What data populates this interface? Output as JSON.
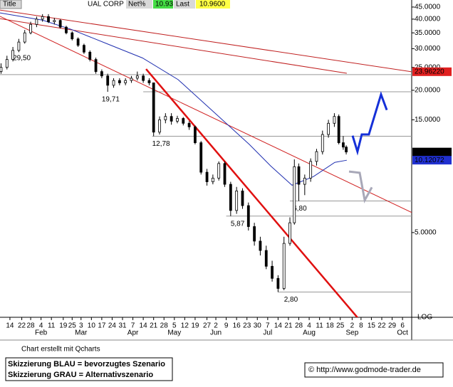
{
  "chart_data": {
    "type": "candlestick",
    "title": "Title",
    "symbol": "UAL CORP",
    "net_label": "Net%",
    "net_value": "10.93",
    "last_label": "Last",
    "last_value": "10.9600",
    "log_label": "LOG",
    "log_scale": true,
    "footer": "Chart erstellt mit Qcharts",
    "legend_lines": [
      "Skizzierung BLAU = bevorzugtes Szenario",
      "Skizzierung GRAU = Alternativszenario"
    ],
    "copyright": "© http://www.godmode-trader.de",
    "xlim": [
      7.3,
      285.2
    ],
    "ylim": [
      2.19,
      48.2
    ],
    "yticks": [
      {
        "value": 45,
        "label": "45.0000"
      },
      {
        "value": 40,
        "label": "40.0000"
      },
      {
        "value": 35,
        "label": "35.0000"
      },
      {
        "value": 30,
        "label": "30.0000"
      },
      {
        "value": 25,
        "label": "25.0000"
      },
      {
        "value": 20,
        "label": "20.0000"
      },
      {
        "value": 15,
        "label": "15.0000"
      },
      {
        "value": 5,
        "label": "5.0000"
      }
    ],
    "xticks": [
      {
        "value": 14,
        "label": "14"
      },
      {
        "value": 22,
        "label": "22"
      },
      {
        "value": 28,
        "label": "28"
      },
      {
        "value": 35,
        "label": "4"
      },
      {
        "value": 42,
        "label": "11"
      },
      {
        "value": 50,
        "label": "19"
      },
      {
        "value": 56,
        "label": "25"
      },
      {
        "value": 62,
        "label": "3"
      },
      {
        "value": 69,
        "label": "10"
      },
      {
        "value": 76,
        "label": "17"
      },
      {
        "value": 83,
        "label": "24"
      },
      {
        "value": 90,
        "label": "31"
      },
      {
        "value": 97,
        "label": "7"
      },
      {
        "value": 104,
        "label": "14"
      },
      {
        "value": 111,
        "label": "21"
      },
      {
        "value": 118,
        "label": "28"
      },
      {
        "value": 125,
        "label": "5"
      },
      {
        "value": 132,
        "label": "12"
      },
      {
        "value": 139,
        "label": "19"
      },
      {
        "value": 147,
        "label": "27"
      },
      {
        "value": 153,
        "label": "2"
      },
      {
        "value": 160,
        "label": "9"
      },
      {
        "value": 167,
        "label": "16"
      },
      {
        "value": 174,
        "label": "23"
      },
      {
        "value": 181,
        "label": "30"
      },
      {
        "value": 188,
        "label": "7"
      },
      {
        "value": 195,
        "label": "14"
      },
      {
        "value": 202,
        "label": "21"
      },
      {
        "value": 209,
        "label": "28"
      },
      {
        "value": 216,
        "label": "4"
      },
      {
        "value": 223,
        "label": "11"
      },
      {
        "value": 230,
        "label": "18"
      },
      {
        "value": 237,
        "label": "25"
      },
      {
        "value": 245,
        "label": "2"
      },
      {
        "value": 251,
        "label": "8"
      },
      {
        "value": 258,
        "label": "15"
      },
      {
        "value": 265,
        "label": "22"
      },
      {
        "value": 272,
        "label": "29"
      },
      {
        "value": 279,
        "label": "6"
      }
    ],
    "months": [
      {
        "value": 35,
        "label": "Feb"
      },
      {
        "value": 62,
        "label": "Mar"
      },
      {
        "value": 97,
        "label": "Apr"
      },
      {
        "value": 125,
        "label": "May"
      },
      {
        "value": 153,
        "label": "Jun"
      },
      {
        "value": 188,
        "label": "Jul"
      },
      {
        "value": 216,
        "label": "Aug"
      },
      {
        "value": 245,
        "label": "Sep"
      },
      {
        "value": 279,
        "label": "Oct"
      }
    ],
    "x": [
      8,
      12,
      16,
      20,
      24,
      28,
      32,
      36,
      40,
      44,
      48,
      52,
      56,
      60,
      64,
      68,
      72,
      76,
      80,
      84,
      88,
      92,
      96,
      100,
      104,
      108,
      111,
      115,
      119,
      123,
      127,
      131,
      135,
      139,
      143,
      147,
      151,
      155,
      159,
      163,
      167,
      171,
      175,
      179,
      183,
      187,
      191,
      195,
      199,
      203,
      206,
      209,
      213,
      217,
      221,
      225,
      229,
      233,
      236,
      239,
      241
    ],
    "open": [
      24,
      25,
      27,
      29.5,
      32,
      35,
      38,
      40,
      41,
      39,
      39.5,
      37,
      35,
      33,
      31,
      29,
      27,
      24,
      23,
      21,
      22,
      21.5,
      22,
      22.5,
      23,
      22,
      21.5,
      13.3,
      15,
      15.5,
      14.8,
      15.2,
      14.5,
      14,
      12,
      9,
      8.2,
      8.5,
      9.8,
      8,
      6.2,
      7.5,
      6.5,
      5.3,
      4.6,
      4.2,
      3.6,
      3.2,
      2.9,
      4.5,
      5.5,
      9.5,
      8,
      8.5,
      10,
      11,
      13,
      14.5,
      15.5,
      12,
      11.5
    ],
    "high": [
      26,
      28,
      30.5,
      33,
      36,
      39,
      41,
      42,
      42,
      40.5,
      40,
      37.5,
      35.5,
      33.5,
      31.5,
      29.5,
      27.5,
      24.5,
      23.5,
      22.5,
      22.5,
      22.5,
      23,
      24,
      23.5,
      22.5,
      21.5,
      15.5,
      16,
      16,
      15.6,
      15.4,
      14.8,
      14.2,
      12.2,
      9.3,
      8.8,
      10,
      10,
      8.2,
      7.8,
      7.7,
      6.7,
      5.5,
      4.8,
      4.4,
      3.8,
      3.3,
      4.8,
      5.8,
      10.2,
      9.8,
      8.8,
      10.3,
      11.3,
      13.5,
      15,
      16,
      15.8,
      12.8,
      11.7
    ],
    "low": [
      23.5,
      24.5,
      26.5,
      29,
      31.5,
      34.5,
      37,
      39,
      38.5,
      38,
      36.5,
      34.5,
      32.5,
      30.5,
      28.5,
      26.5,
      23.5,
      22.5,
      19.7,
      20.5,
      21,
      21,
      21.5,
      22,
      21.5,
      21,
      12.78,
      13,
      14.5,
      14.3,
      14.5,
      14.2,
      13.6,
      11.8,
      8.8,
      7.9,
      8,
      8.3,
      7.8,
      5.87,
      6,
      6.3,
      5.1,
      4.4,
      4,
      3.5,
      3.1,
      2.8,
      2.85,
      4.4,
      5.4,
      6.8,
      7.2,
      8.2,
      9.6,
      10.7,
      12.6,
      14,
      11.8,
      11.2,
      10.7
    ],
    "close": [
      25,
      27,
      29.5,
      32,
      35,
      38,
      40,
      41,
      39,
      39.5,
      37,
      35,
      33,
      31,
      29,
      27,
      24,
      23,
      21,
      22,
      21.5,
      22,
      22.5,
      23,
      22,
      21.5,
      13.3,
      15,
      15.5,
      14.8,
      15.2,
      14.5,
      14,
      12,
      9,
      8.2,
      8.5,
      9.8,
      8,
      6.2,
      7.5,
      6.5,
      5.3,
      4.6,
      4.2,
      3.6,
      3.2,
      2.9,
      4.5,
      5.5,
      9.5,
      8,
      8.5,
      10,
      11,
      13,
      14.5,
      15.5,
      12,
      11.5,
      10.96
    ],
    "moving_average": {
      "color": "#1f2fb0",
      "x": [
        7.3,
        36.1,
        55.4,
        79.4,
        103.5,
        127.5,
        151.5,
        175.6,
        190,
        204.4,
        218.8,
        233.3,
        241.4
      ],
      "values": [
        42.5,
        39.6,
        36.2,
        31.5,
        27.4,
        22.2,
        16.2,
        11.8,
        9.57,
        7.93,
        8.62,
        9.91,
        10.12
      ]
    },
    "trendlines": [
      {
        "color": "#e01010",
        "width": 2.5,
        "x": [
          105.9,
          250.1
        ],
        "values": [
          24.6,
          2.13
        ]
      },
      {
        "color": "#c02020",
        "width": 1,
        "x": [
          7.3,
          285.2
        ],
        "values": [
          43.7,
          23.96
        ]
      },
      {
        "color": "#c02020",
        "width": 1,
        "x": [
          7.3,
          241.4
        ],
        "values": [
          40.2,
          23.6
        ]
      },
      {
        "color": "#d02020",
        "width": 1,
        "x": [
          7.3,
          285.2
        ],
        "values": [
          41.1,
          6.08
        ]
      }
    ],
    "scenarios": [
      {
        "color": "#1530d8",
        "x": [
          245.3,
          248.6,
          251.5,
          256.3,
          264.5,
          268.4
        ],
        "values": [
          12.85,
          11.0,
          13.0,
          13.0,
          19.2,
          16.5
        ]
      },
      {
        "color": "#a8a8b8",
        "x": [
          242.9,
          250.1,
          253.5,
          258.3
        ],
        "values": [
          9.06,
          8.95,
          6.85,
          7.77
        ]
      }
    ],
    "hlines": [
      {
        "value": 23.3,
        "from": 7.3
      }
    ],
    "levels": [
      {
        "value": 29.5,
        "label": "29,50",
        "day": 16
      },
      {
        "value": 19.71,
        "label": "19,71",
        "day": 76,
        "from": 104
      },
      {
        "value": 12.78,
        "label": "12,78",
        "day": 110,
        "from": 110
      },
      {
        "value": 5.87,
        "label": "5,87",
        "day": 163,
        "from": 160
      },
      {
        "value": 6.8,
        "label": "6,80",
        "day": 205,
        "from": 203
      },
      {
        "value": 2.8,
        "label": "2,80",
        "day": 199,
        "from": 195
      }
    ],
    "price_boxes": [
      {
        "value": 23.9622,
        "label": "23.96220",
        "color": "#e02020",
        "text_color": "#ffffff"
      },
      {
        "value": 10.96,
        "label": "10.9600",
        "color": "#000000",
        "text_color": "#ffffff"
      },
      {
        "value": 10.12072,
        "label": "10.12072",
        "color": "#2030d0",
        "text_color": "#ffffff"
      }
    ]
  }
}
